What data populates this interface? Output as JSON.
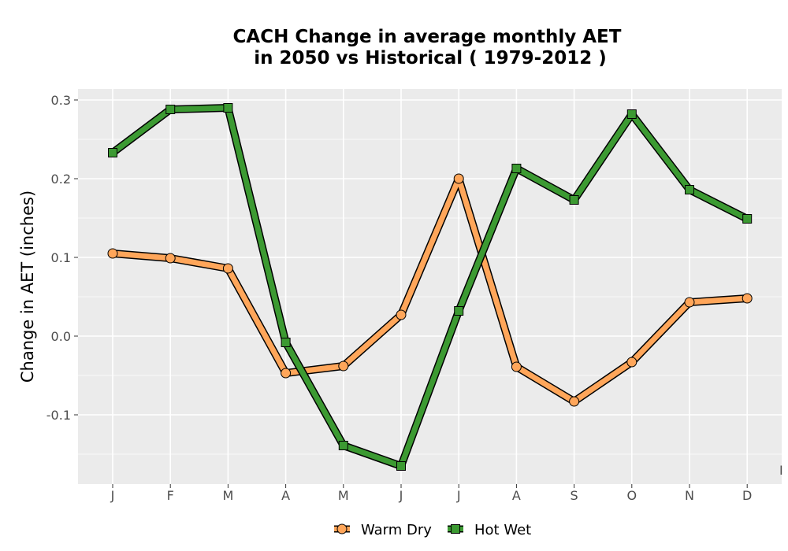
{
  "chart_data": {
    "type": "line",
    "title_lines": [
      "CACH  Change in average monthly AET",
      "in 2050 vs Historical ( 1979-2012 )"
    ],
    "xlabel": "",
    "ylabel": "Change in AET (inches)",
    "categories": [
      "J",
      "F",
      "M",
      "A",
      "M",
      "J",
      "J",
      "A",
      "S",
      "O",
      "N",
      "D"
    ],
    "ylim": [
      -0.188,
      0.314
    ],
    "yticks": [
      -0.1,
      0.0,
      0.1,
      0.2,
      0.3
    ],
    "ytick_labels": [
      "-0.1",
      "0.0",
      "0.1",
      "0.2",
      "0.3"
    ],
    "grid": true,
    "legend_position": "bottom",
    "series": [
      {
        "name": "Warm Dry",
        "marker": "circle",
        "color": "#ffa65a",
        "values": [
          0.105,
          0.099,
          0.086,
          -0.047,
          -0.038,
          0.027,
          0.2,
          -0.039,
          -0.083,
          -0.033,
          0.043,
          0.048
        ]
      },
      {
        "name": "Hot Wet",
        "marker": "square",
        "color": "#3c9a32",
        "values": [
          0.233,
          0.288,
          0.29,
          -0.008,
          -0.139,
          -0.165,
          0.032,
          0.213,
          0.173,
          0.282,
          0.186,
          0.149
        ]
      }
    ],
    "annotations": [
      "I"
    ]
  }
}
